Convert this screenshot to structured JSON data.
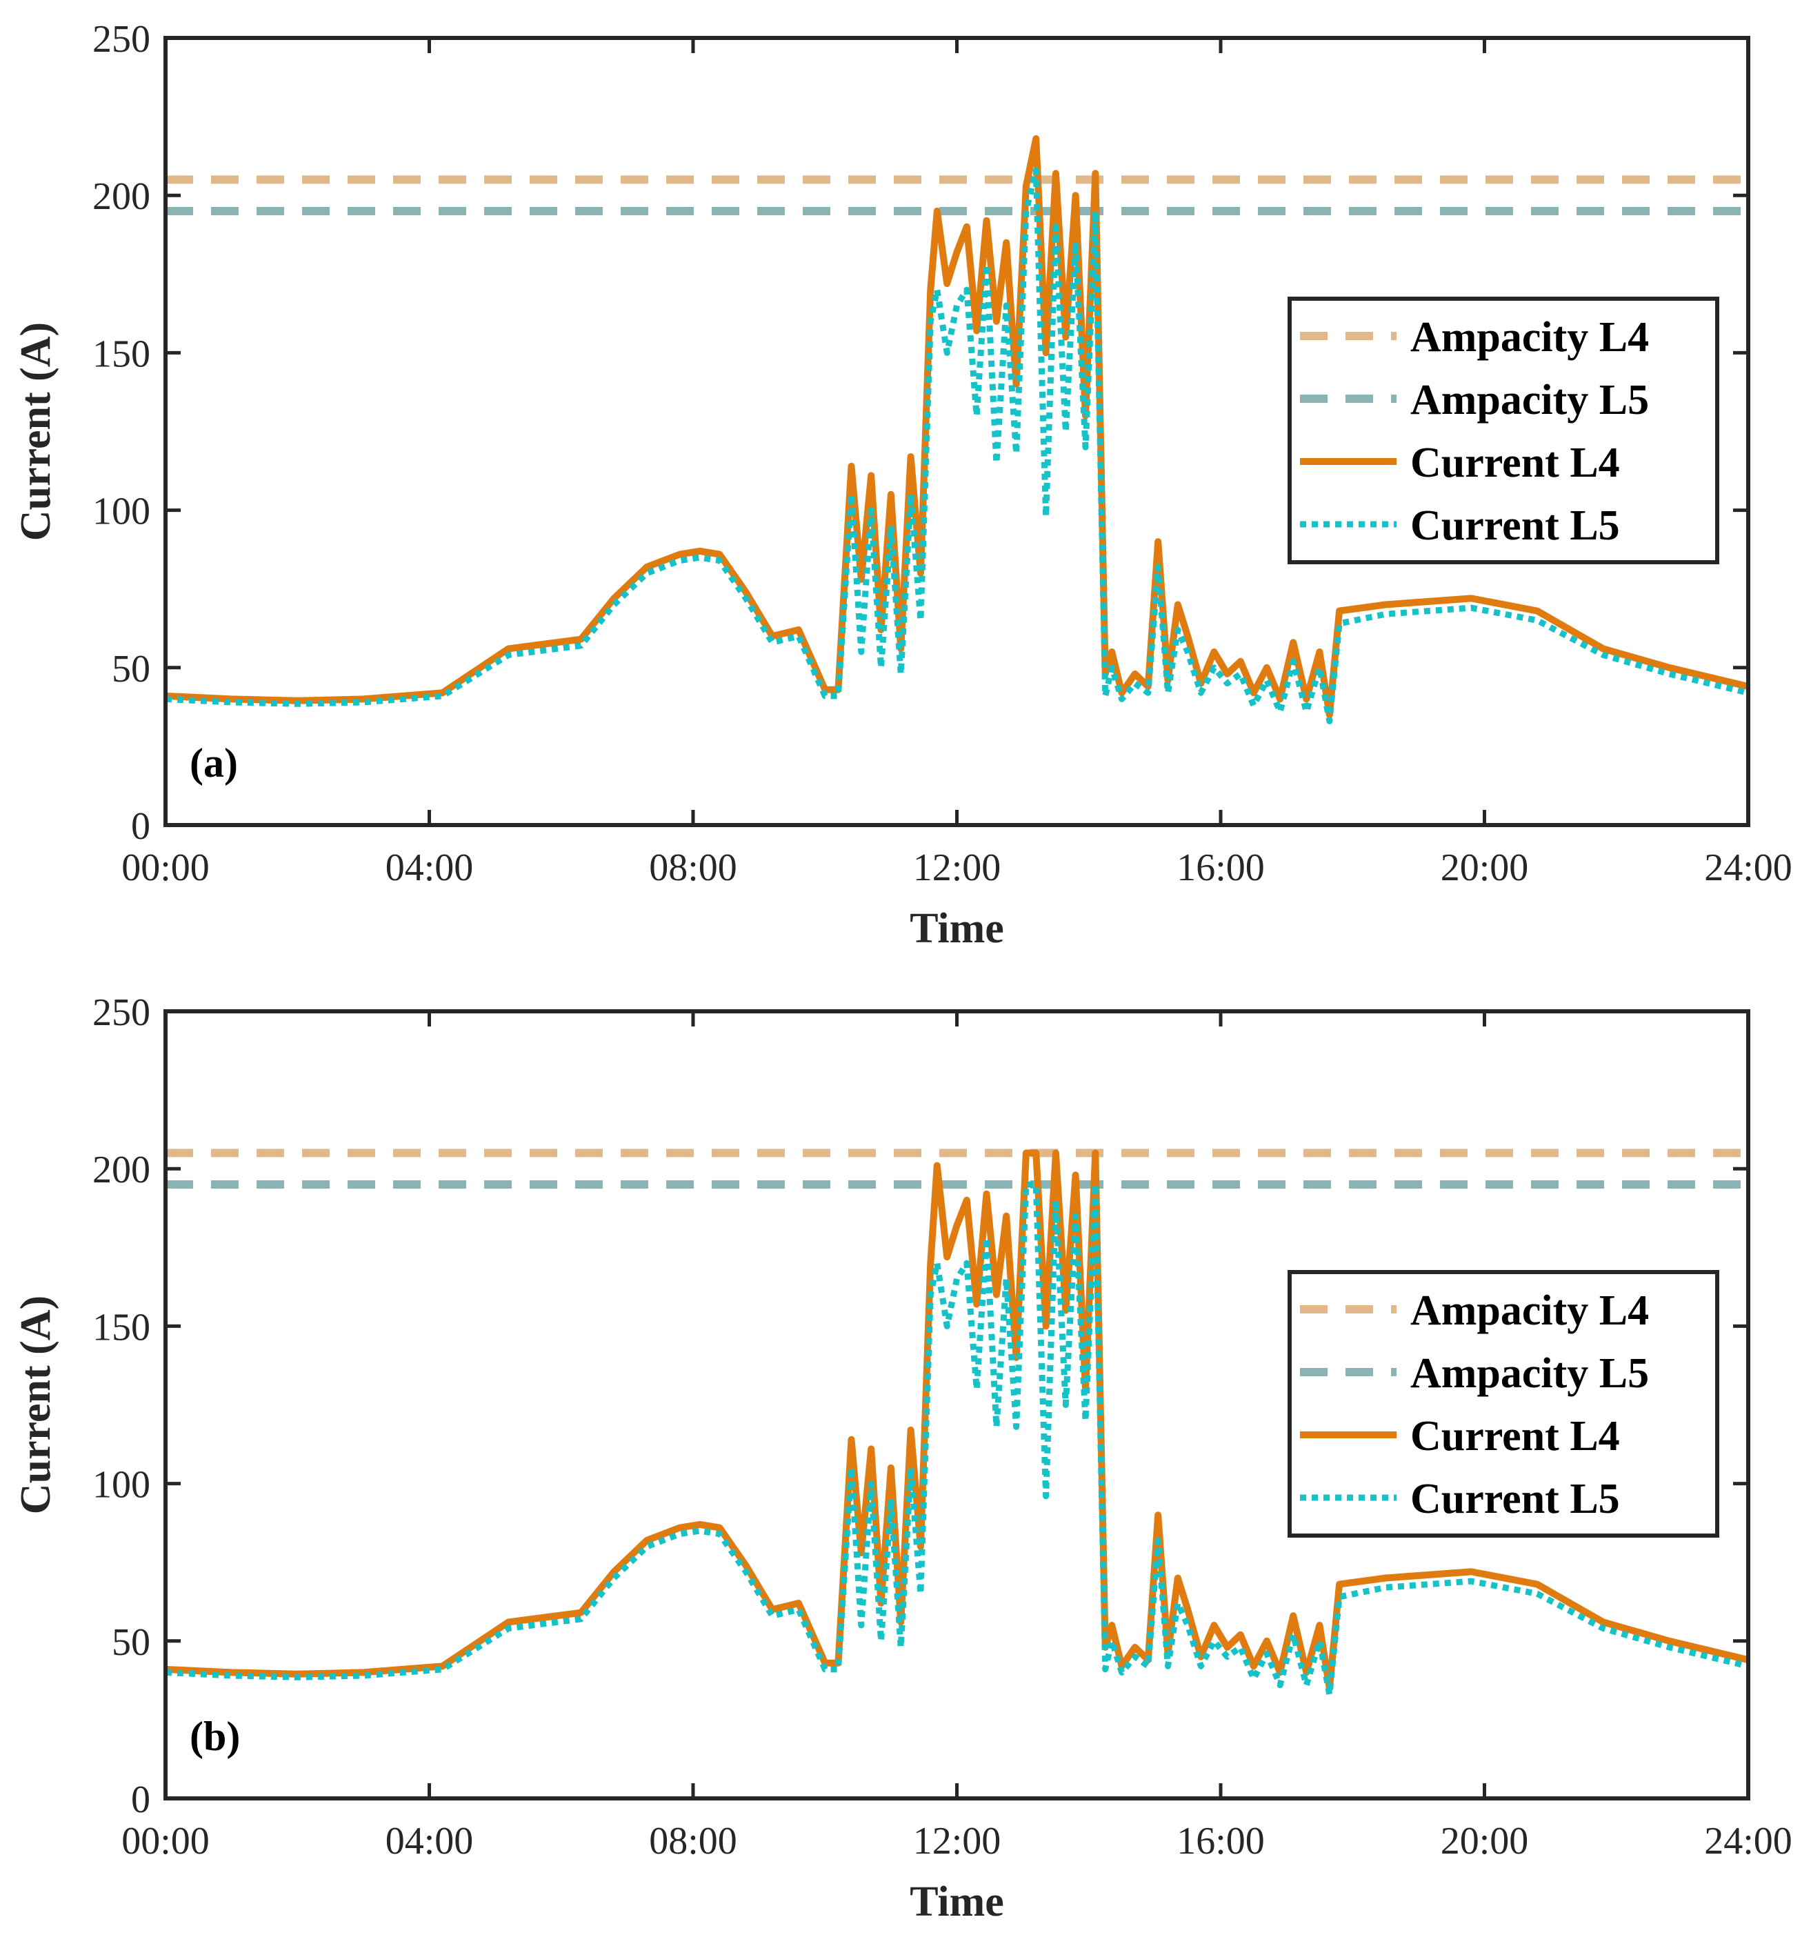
{
  "colors": {
    "ampacity_L4": "#e1b88a",
    "ampacity_L5": "#8ab4b4",
    "current_L4": "#e07b10",
    "current_L5": "#16c2c8",
    "axes": "#262626",
    "background": "#ffffff"
  },
  "chart_data": [
    {
      "type": "line",
      "panel_label": "(a)",
      "xlabel": "Time",
      "ylabel": "Current (A)",
      "xlim": [
        0,
        24
      ],
      "ylim": [
        0,
        250
      ],
      "x_ticks": [
        0,
        4,
        8,
        12,
        16,
        20,
        24
      ],
      "x_tick_labels": [
        "00:00",
        "04:00",
        "08:00",
        "12:00",
        "16:00",
        "20:00",
        "24:00"
      ],
      "y_ticks": [
        0,
        50,
        100,
        150,
        200,
        250
      ],
      "y_tick_labels": [
        "0",
        "50",
        "100",
        "150",
        "200",
        "250"
      ],
      "legend_position": "right",
      "series": [
        {
          "name": "Ampacity L4",
          "style": "dashed",
          "x": [
            0,
            24
          ],
          "values": [
            205,
            205
          ]
        },
        {
          "name": "Ampacity L5",
          "style": "dashed",
          "x": [
            0,
            24
          ],
          "values": [
            195,
            195
          ]
        },
        {
          "name": "Current L4",
          "style": "solid",
          "x": [
            0,
            1,
            2,
            3,
            4.2,
            5.2,
            6.3,
            6.8,
            7.3,
            7.8,
            8.1,
            8.4,
            8.8,
            9.2,
            9.6,
            10.0,
            10.2,
            10.4,
            10.55,
            10.7,
            10.85,
            11.0,
            11.15,
            11.3,
            11.45,
            11.6,
            11.7,
            11.85,
            12.0,
            12.15,
            12.3,
            12.45,
            12.6,
            12.75,
            12.9,
            13.05,
            13.2,
            13.35,
            13.5,
            13.65,
            13.8,
            13.95,
            14.1,
            14.25,
            14.35,
            14.5,
            14.7,
            14.9,
            15.05,
            15.2,
            15.35,
            15.5,
            15.7,
            15.9,
            16.1,
            16.3,
            16.5,
            16.7,
            16.9,
            17.1,
            17.3,
            17.5,
            17.65,
            17.8,
            18.5,
            19.8,
            20.8,
            21.8,
            22.8,
            24
          ],
          "values": [
            41,
            40,
            39.5,
            40,
            42,
            56,
            59,
            72,
            82,
            86,
            87,
            86,
            74,
            60,
            62,
            43,
            43,
            114,
            78,
            111,
            62,
            105,
            56,
            117,
            80,
            170,
            195,
            172,
            182,
            190,
            157,
            192,
            160,
            185,
            140,
            203,
            218,
            150,
            207,
            155,
            200,
            130,
            207,
            48,
            55,
            42,
            48,
            44,
            90,
            46,
            70,
            60,
            45,
            55,
            48,
            52,
            42,
            50,
            40,
            58,
            40,
            55,
            35,
            68,
            70,
            72,
            68,
            56,
            50,
            44
          ]
        },
        {
          "name": "Current L5",
          "style": "dotted",
          "x": [
            0,
            1,
            2,
            3,
            4.2,
            5.2,
            6.3,
            6.8,
            7.3,
            7.8,
            8.1,
            8.4,
            8.8,
            9.2,
            9.6,
            10.0,
            10.2,
            10.4,
            10.55,
            10.7,
            10.85,
            11.0,
            11.15,
            11.3,
            11.45,
            11.6,
            11.7,
            11.85,
            12.0,
            12.15,
            12.3,
            12.45,
            12.6,
            12.75,
            12.9,
            13.05,
            13.2,
            13.35,
            13.5,
            13.65,
            13.8,
            13.95,
            14.1,
            14.25,
            14.35,
            14.5,
            14.7,
            14.9,
            15.05,
            15.2,
            15.35,
            15.5,
            15.7,
            15.9,
            16.1,
            16.3,
            16.5,
            16.7,
            16.9,
            17.1,
            17.3,
            17.5,
            17.65,
            17.8,
            18.5,
            19.8,
            20.8,
            21.8,
            22.8,
            24
          ],
          "values": [
            40,
            39,
            38.5,
            39,
            41,
            54,
            57,
            70,
            80,
            84,
            85,
            84,
            72,
            58,
            60,
            41,
            41,
            105,
            55,
            100,
            50,
            95,
            48,
            105,
            65,
            160,
            170,
            150,
            165,
            170,
            130,
            178,
            115,
            165,
            118,
            195,
            208,
            98,
            190,
            125,
            185,
            120,
            195,
            41,
            50,
            40,
            45,
            42,
            82,
            42,
            62,
            55,
            42,
            50,
            45,
            48,
            38,
            46,
            36,
            52,
            36,
            50,
            33,
            64,
            67,
            69,
            65,
            54,
            48,
            42
          ]
        }
      ]
    },
    {
      "type": "line",
      "panel_label": "(b)",
      "xlabel": "Time",
      "ylabel": "Current (A)",
      "xlim": [
        0,
        24
      ],
      "ylim": [
        0,
        250
      ],
      "x_ticks": [
        0,
        4,
        8,
        12,
        16,
        20,
        24
      ],
      "x_tick_labels": [
        "00:00",
        "04:00",
        "08:00",
        "12:00",
        "16:00",
        "20:00",
        "24:00"
      ],
      "y_ticks": [
        0,
        50,
        100,
        150,
        200,
        250
      ],
      "y_tick_labels": [
        "0",
        "50",
        "100",
        "150",
        "200",
        "250"
      ],
      "legend_position": "right",
      "series": [
        {
          "name": "Ampacity L4",
          "style": "dashed",
          "x": [
            0,
            24
          ],
          "values": [
            205,
            205
          ]
        },
        {
          "name": "Ampacity L5",
          "style": "dashed",
          "x": [
            0,
            24
          ],
          "values": [
            195,
            195
          ]
        },
        {
          "name": "Current L4",
          "style": "solid",
          "x": [
            0,
            1,
            2,
            3,
            4.2,
            5.2,
            6.3,
            6.8,
            7.3,
            7.8,
            8.1,
            8.4,
            8.8,
            9.2,
            9.6,
            10.0,
            10.2,
            10.4,
            10.55,
            10.7,
            10.85,
            11.0,
            11.15,
            11.3,
            11.45,
            11.6,
            11.7,
            11.85,
            12.0,
            12.15,
            12.3,
            12.45,
            12.6,
            12.75,
            12.9,
            13.05,
            13.2,
            13.35,
            13.5,
            13.65,
            13.8,
            13.95,
            14.1,
            14.25,
            14.35,
            14.5,
            14.7,
            14.9,
            15.05,
            15.2,
            15.35,
            15.5,
            15.7,
            15.9,
            16.1,
            16.3,
            16.5,
            16.7,
            16.9,
            17.1,
            17.3,
            17.5,
            17.65,
            17.8,
            18.5,
            19.8,
            20.8,
            21.8,
            22.8,
            24
          ],
          "values": [
            41,
            40,
            39.5,
            40,
            42,
            56,
            59,
            72,
            82,
            86,
            87,
            86,
            74,
            60,
            62,
            43,
            43,
            114,
            78,
            111,
            62,
            105,
            56,
            117,
            80,
            170,
            201,
            172,
            182,
            190,
            157,
            192,
            160,
            185,
            140,
            205,
            205,
            150,
            205,
            155,
            198,
            130,
            205,
            48,
            55,
            42,
            48,
            44,
            90,
            46,
            70,
            60,
            45,
            55,
            48,
            52,
            42,
            50,
            40,
            58,
            40,
            55,
            35,
            68,
            70,
            72,
            68,
            56,
            50,
            44
          ]
        },
        {
          "name": "Current L5",
          "style": "dotted",
          "x": [
            0,
            1,
            2,
            3,
            4.2,
            5.2,
            6.3,
            6.8,
            7.3,
            7.8,
            8.1,
            8.4,
            8.8,
            9.2,
            9.6,
            10.0,
            10.2,
            10.4,
            10.55,
            10.7,
            10.85,
            11.0,
            11.15,
            11.3,
            11.45,
            11.6,
            11.7,
            11.85,
            12.0,
            12.15,
            12.3,
            12.45,
            12.6,
            12.75,
            12.9,
            13.05,
            13.2,
            13.35,
            13.5,
            13.65,
            13.8,
            13.95,
            14.1,
            14.25,
            14.35,
            14.5,
            14.7,
            14.9,
            15.05,
            15.2,
            15.35,
            15.5,
            15.7,
            15.9,
            16.1,
            16.3,
            16.5,
            16.7,
            16.9,
            17.1,
            17.3,
            17.5,
            17.65,
            17.8,
            18.5,
            19.8,
            20.8,
            21.8,
            22.8,
            24
          ],
          "values": [
            40,
            39,
            38.5,
            39,
            41,
            54,
            57,
            70,
            80,
            84,
            85,
            84,
            72,
            58,
            60,
            41,
            41,
            105,
            55,
            100,
            50,
            95,
            48,
            105,
            65,
            160,
            170,
            150,
            165,
            170,
            130,
            178,
            118,
            165,
            118,
            195,
            195,
            96,
            190,
            125,
            185,
            120,
            195,
            41,
            50,
            40,
            45,
            42,
            82,
            42,
            62,
            55,
            42,
            50,
            45,
            48,
            38,
            46,
            36,
            52,
            36,
            50,
            33,
            64,
            67,
            69,
            65,
            54,
            48,
            42
          ]
        }
      ]
    }
  ]
}
